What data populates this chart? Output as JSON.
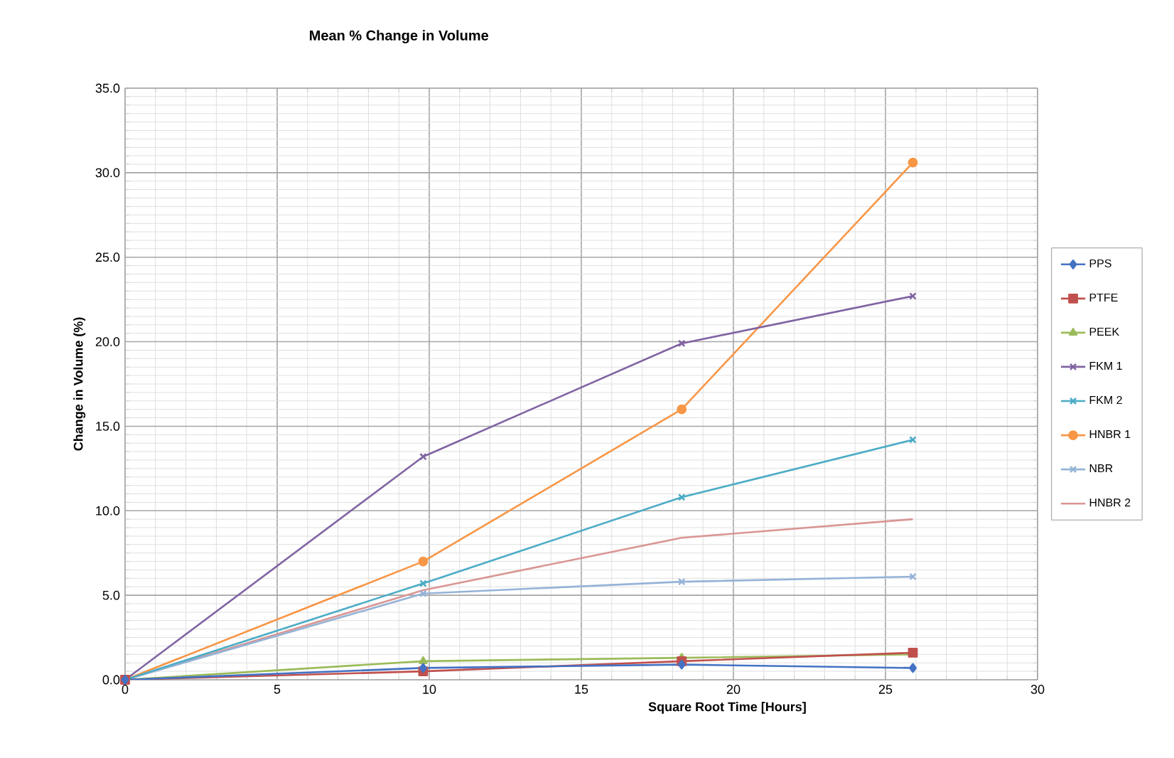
{
  "chart_data": {
    "type": "line",
    "title": "Mean %  Change in Volume",
    "xlabel": "Square Root Time [Hours]",
    "ylabel": "Change in Volume (%)",
    "x": [
      0,
      9.8,
      18.3,
      25.9
    ],
    "series": [
      {
        "name": "PPS",
        "color": "#4472c4",
        "marker": "diamond",
        "values": [
          0,
          0.7,
          0.9,
          0.7
        ]
      },
      {
        "name": "PTFE",
        "color": "#c0504d",
        "marker": "square",
        "values": [
          0,
          0.5,
          1.1,
          1.6
        ]
      },
      {
        "name": "PEEK",
        "color": "#9bbb59",
        "marker": "triangle",
        "values": [
          0,
          1.1,
          1.3,
          1.5
        ]
      },
      {
        "name": "FKM 1",
        "color": "#8064a2",
        "marker": "cross",
        "values": [
          0,
          13.2,
          19.9,
          22.7
        ]
      },
      {
        "name": "FKM 2",
        "color": "#4bacc6",
        "marker": "cross",
        "values": [
          0,
          5.7,
          10.8,
          14.2
        ]
      },
      {
        "name": "HNBR 1",
        "color": "#f79646",
        "marker": "circle",
        "values": [
          0,
          7.0,
          16.0,
          30.6
        ]
      },
      {
        "name": "NBR",
        "color": "#95b3d7",
        "marker": "cross",
        "values": [
          0,
          5.1,
          5.8,
          6.1
        ]
      },
      {
        "name": "HNBR 2",
        "color": "#d99694",
        "marker": "none",
        "values": [
          0,
          5.3,
          8.4,
          9.5
        ]
      }
    ],
    "xlim": [
      0,
      30
    ],
    "xticks": [
      0,
      5,
      10,
      15,
      20,
      25,
      30
    ],
    "ylim": [
      0,
      35
    ],
    "yticks": [
      {
        "value": 0,
        "label": "0.0"
      },
      {
        "value": 5,
        "label": "5.0"
      },
      {
        "value": 10,
        "label": "10.0"
      },
      {
        "value": 15,
        "label": "15.0"
      },
      {
        "value": 20,
        "label": "20.0"
      },
      {
        "value": 25,
        "label": "25.0"
      },
      {
        "value": 30,
        "label": "30.0"
      },
      {
        "value": 35,
        "label": "35.0"
      }
    ],
    "grid": true,
    "legend": "right",
    "line_style": "solid"
  }
}
